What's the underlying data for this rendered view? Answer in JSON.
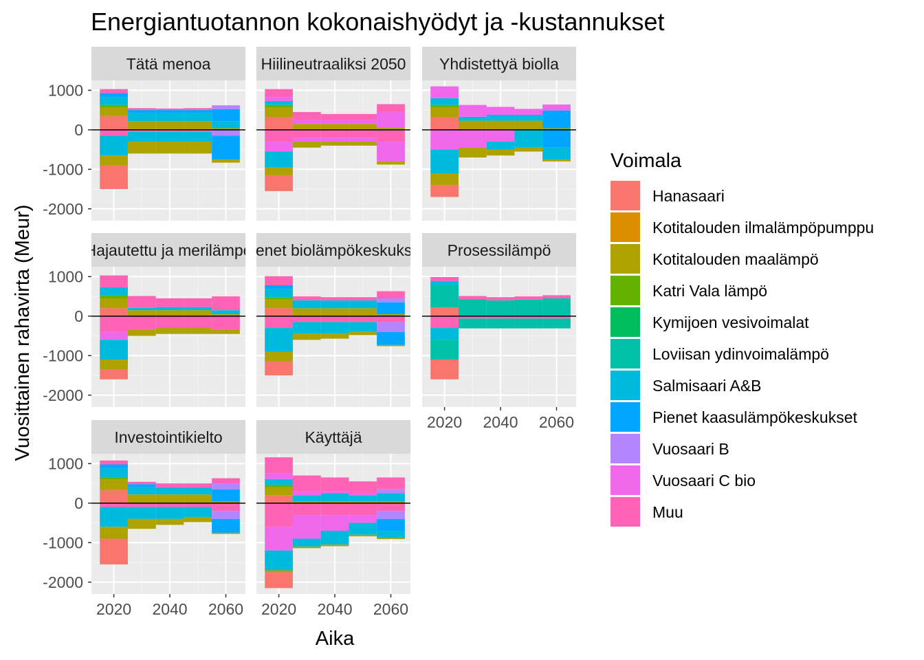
{
  "chart_data": {
    "type": "area",
    "title": "Energiantuotannon kokonaishyödyt ja -kustannukset",
    "xlabel": "Aika",
    "ylabel": "Vuosittainen rahavirta (Meur)",
    "x_ticks": [
      2020,
      2040,
      2060
    ],
    "y_ticks": [
      1000,
      0,
      -1000,
      -2000
    ],
    "xlim": [
      2012,
      2067
    ],
    "ylim": [
      -2300,
      1250
    ],
    "periods": [
      2020,
      2030,
      2040,
      2050,
      2060
    ],
    "legend": {
      "title": "Voimala",
      "placement": "right",
      "entries": [
        {
          "name": "Hanasaari",
          "color": "#F8766D"
        },
        {
          "name": "Kotitalouden ilmalämpöpumppu",
          "color": "#DB8E00"
        },
        {
          "name": "Kotitalouden maalämpö",
          "color": "#AEA200"
        },
        {
          "name": "Katri Vala lämpö",
          "color": "#64B200"
        },
        {
          "name": "Kymijoen vesivoimalat",
          "color": "#00BD5C"
        },
        {
          "name": "Loviisan ydinvoimalämpö",
          "color": "#00C1A7"
        },
        {
          "name": "Salmisaari A&B",
          "color": "#00BADE"
        },
        {
          "name": "Pienet kaasulämpökeskukset",
          "color": "#00A6FF"
        },
        {
          "name": "Vuosaari B",
          "color": "#B385FF"
        },
        {
          "name": "Vuosaari C bio",
          "color": "#EF67EB"
        },
        {
          "name": "Muu",
          "color": "#FF63B6"
        }
      ]
    },
    "facets": [
      {
        "strip": "Tätä menoa",
        "positive": [
          {
            "Hanasaari": 350,
            "Kotitalouden maalämpö": 220,
            "Katri Vala lämpö": 60,
            "Salmisaari A&B": 200,
            "Pienet kaasulämpökeskukset": 100,
            "Muu": 100
          },
          {
            "Kotitalouden maalämpö": 220,
            "Salmisaari A&B": 200,
            "Pienet kaasulämpökeskukset": 80,
            "Muu": 50
          },
          {
            "Kotitalouden maalämpö": 220,
            "Salmisaari A&B": 200,
            "Pienet kaasulämpökeskukset": 80,
            "Muu": 40
          },
          {
            "Kotitalouden maalämpö": 220,
            "Salmisaari A&B": 200,
            "Pienet kaasulämpökeskukset": 80,
            "Muu": 50
          },
          {
            "Kotitalouden maalämpö": 40,
            "Salmisaari A&B": 180,
            "Pienet kaasulämpökeskukset": 300,
            "Vuosaari B": 100
          }
        ],
        "negative": [
          {
            "Muu": -150,
            "Salmisaari A&B": -500,
            "Kotitalouden maalämpö": -250,
            "Hanasaari": -600
          },
          {
            "Muu": -50,
            "Salmisaari A&B": -250,
            "Kotitalouden maalämpö": -300
          },
          {
            "Muu": -50,
            "Salmisaari A&B": -250,
            "Kotitalouden maalämpö": -300
          },
          {
            "Muu": -50,
            "Salmisaari A&B": -250,
            "Kotitalouden maalämpö": -300
          },
          {
            "Vuosaari B": -150,
            "Pienet kaasulämpökeskukset": -600,
            "Kotitalouden maalämpö": -80
          }
        ]
      },
      {
        "strip": "Hiilineutraaliksi 2050",
        "positive": [
          {
            "Hanasaari": 320,
            "Kotitalouden maalämpö": 250,
            "Katri Vala lämpö": 60,
            "Salmisaari A&B": 100,
            "Vuosaari C bio": 100,
            "Muu": 200
          },
          {
            "Kotitalouden maalämpö": 150,
            "Vuosaari C bio": 100,
            "Muu": 200
          },
          {
            "Kotitalouden maalämpö": 150,
            "Vuosaari C bio": 100,
            "Muu": 150
          },
          {
            "Kotitalouden maalämpö": 150,
            "Vuosaari C bio": 100,
            "Muu": 150
          },
          {
            "Kotitalouden maalämpö": 50,
            "Vuosaari C bio": 400,
            "Muu": 200
          }
        ],
        "negative": [
          {
            "Muu": -300,
            "Vuosaari C bio": -250,
            "Salmisaari A&B": -400,
            "Kotitalouden maalämpö": -200,
            "Hanasaari": -400
          },
          {
            "Muu": -200,
            "Vuosaari C bio": -100,
            "Kotitalouden maalämpö": -150
          },
          {
            "Muu": -200,
            "Vuosaari C bio": -100,
            "Kotitalouden maalämpö": -100
          },
          {
            "Muu": -200,
            "Vuosaari C bio": -100,
            "Kotitalouden maalämpö": -100
          },
          {
            "Muu": -300,
            "Vuosaari C bio": -500,
            "Kotitalouden maalämpö": -80
          }
        ]
      },
      {
        "strip": "Yhdistettyä biolla",
        "positive": [
          {
            "Hanasaari": 320,
            "Kotitalouden maalämpö": 250,
            "Katri Vala lämpö": 60,
            "Salmisaari A&B": 170,
            "Vuosaari C bio": 300
          },
          {
            "Kotitalouden maalämpö": 230,
            "Salmisaari A&B": 100,
            "Vuosaari C bio": 300
          },
          {
            "Kotitalouden maalämpö": 230,
            "Salmisaari A&B": 150,
            "Vuosaari C bio": 200
          },
          {
            "Kotitalouden maalämpö": 230,
            "Salmisaari A&B": 150,
            "Vuosaari C bio": 150
          },
          {
            "Kotitalouden maalämpö": 40,
            "Pienet kaasulämpökeskukset": 450,
            "Vuosaari C bio": 150
          }
        ],
        "negative": [
          {
            "Vuosaari C bio": -500,
            "Salmisaari A&B": -600,
            "Kotitalouden maalämpö": -300,
            "Hanasaari": -300
          },
          {
            "Vuosaari C bio": -450,
            "Kotitalouden maalämpö": -250
          },
          {
            "Vuosaari C bio": -300,
            "Salmisaari A&B": -200,
            "Kotitalouden maalämpö": -150
          },
          {
            "Salmisaari A&B": -450,
            "Kotitalouden maalämpö": -100
          },
          {
            "Pienet kaasulämpökeskukset": -450,
            "Salmisaari A&B": -300,
            "Kotitalouden maalämpö": -50
          }
        ]
      },
      {
        "strip": "Hajautettu ja merilämpö",
        "positive": [
          {
            "Hanasaari": 200,
            "Kotitalouden maalämpö": 250,
            "Katri Vala lämpö": 80,
            "Salmisaari A&B": 200,
            "Muu": 300
          },
          {
            "Kotitalouden maalämpö": 150,
            "Salmisaari A&B": 60,
            "Muu": 300
          },
          {
            "Kotitalouden maalämpö": 150,
            "Salmisaari A&B": 80,
            "Muu": 220
          },
          {
            "Kotitalouden maalämpö": 150,
            "Salmisaari A&B": 80,
            "Muu": 220
          },
          {
            "Kotitalouden maalämpö": 50,
            "Salmisaari A&B": 100,
            "Muu": 350
          }
        ],
        "negative": [
          {
            "Muu": -400,
            "Vuosaari C bio": -200,
            "Salmisaari A&B": -500,
            "Kotitalouden maalämpö": -250,
            "Hanasaari": -250
          },
          {
            "Muu": -350,
            "Kotitalouden maalämpö": -150
          },
          {
            "Muu": -300,
            "Kotitalouden maalämpö": -150
          },
          {
            "Muu": -300,
            "Kotitalouden maalämpö": -150
          },
          {
            "Muu": -350,
            "Kotitalouden maalämpö": -100
          }
        ]
      },
      {
        "strip": "Pienet biolämpökeskukset",
        "positive": [
          {
            "Hanasaari": 200,
            "Kotitalouden maalämpö": 220,
            "Katri Vala lämpö": 60,
            "Salmisaari A&B": 200,
            "Pienet kaasulämpökeskukset": 100,
            "Muu": 230
          },
          {
            "Kotitalouden maalämpö": 200,
            "Salmisaari A&B": 200,
            "Muu": 100
          },
          {
            "Kotitalouden maalämpö": 200,
            "Salmisaari A&B": 200,
            "Muu": 80
          },
          {
            "Kotitalouden maalämpö": 200,
            "Salmisaari A&B": 200,
            "Muu": 80
          },
          {
            "Kotitalouden maalämpö": 50,
            "Pienet kaasulämpökeskukset": 300,
            "Vuosaari B": 100,
            "Muu": 180
          }
        ],
        "negative": [
          {
            "Muu": -300,
            "Salmisaari A&B": -600,
            "Kotitalouden maalämpö": -250,
            "Hanasaari": -350
          },
          {
            "Muu": -150,
            "Salmisaari A&B": -300,
            "Kotitalouden maalämpö": -150
          },
          {
            "Muu": -150,
            "Salmisaari A&B": -300,
            "Kotitalouden maalämpö": -120
          },
          {
            "Muu": -150,
            "Salmisaari A&B": -250,
            "Kotitalouden maalämpö": -80
          },
          {
            "Muu": -150,
            "Vuosaari B": -250,
            "Pienet kaasulämpökeskukset": -330,
            "Kotitalouden maalämpö": -30
          }
        ]
      },
      {
        "strip": "Prosessilämpö",
        "positive": [
          {
            "Hanasaari": 220,
            "Loviisan ydinvoimalämpö": 570,
            "Salmisaari A&B": 100,
            "Muu": 100
          },
          {
            "Loviisan ydinvoimalämpö": 430,
            "Muu": 80
          },
          {
            "Loviisan ydinvoimalämpö": 400,
            "Muu": 80
          },
          {
            "Loviisan ydinvoimalämpö": 420,
            "Muu": 80
          },
          {
            "Loviisan ydinvoimalämpö": 450,
            "Muu": 80
          }
        ],
        "negative": [
          {
            "Muu": -300,
            "Salmisaari A&B": -300,
            "Loviisan ydinvoimalämpö": -500,
            "Hanasaari": -500
          },
          {
            "Muu": -60,
            "Loviisan ydinvoimalämpö": -250
          },
          {
            "Muu": -60,
            "Loviisan ydinvoimalämpö": -250
          },
          {
            "Muu": -60,
            "Loviisan ydinvoimalämpö": -250
          },
          {
            "Muu": -60,
            "Loviisan ydinvoimalämpö": -250
          }
        ]
      },
      {
        "strip": "Investointikielto",
        "positive": [
          {
            "Hanasaari": 330,
            "Kotitalouden maalämpö": 270,
            "Katri Vala lämpö": 60,
            "Salmisaari A&B": 220,
            "Pienet kaasulämpökeskukset": 100,
            "Muu": 100
          },
          {
            "Kotitalouden maalämpö": 220,
            "Salmisaari A&B": 180,
            "Pienet kaasulämpökeskukset": 80,
            "Muu": 60
          },
          {
            "Kotitalouden maalämpö": 220,
            "Salmisaari A&B": 180,
            "Muu": 100
          },
          {
            "Kotitalouden maalämpö": 220,
            "Salmisaari A&B": 180,
            "Muu": 100
          },
          {
            "Kotitalouden maalämpö": 50,
            "Pienet kaasulämpökeskukset": 300,
            "Vuosaari B": 150,
            "Muu": 130
          }
        ],
        "negative": [
          {
            "Muu": -100,
            "Salmisaari A&B": -500,
            "Kotitalouden maalämpö": -300,
            "Hanasaari": -650
          },
          {
            "Muu": -100,
            "Salmisaari A&B": -300,
            "Kotitalouden maalämpö": -250
          },
          {
            "Muu": -100,
            "Salmisaari A&B": -300,
            "Kotitalouden maalämpö": -150
          },
          {
            "Muu": -100,
            "Salmisaari A&B": -250,
            "Kotitalouden maalämpö": -130
          },
          {
            "Muu": -200,
            "Vuosaari B": -200,
            "Pienet kaasulämpökeskukset": -350,
            "Kotitalouden maalämpö": -30
          }
        ]
      },
      {
        "strip": "Käyttäjä",
        "positive": [
          {
            "Hanasaari": 200,
            "Kotitalouden maalämpö": 200,
            "Katri Vala lämpö": 60,
            "Salmisaari A&B": 150,
            "Vuosaari C bio": 150,
            "Muu": 400
          },
          {
            "Kotitalouden maalämpö": 50,
            "Salmisaari A&B": 150,
            "Vuosaari C bio": 100,
            "Muu": 400
          },
          {
            "Kotitalouden maalämpö": 50,
            "Salmisaari A&B": 200,
            "Vuosaari C bio": 50,
            "Muu": 350
          },
          {
            "Kotitalouden maalämpö": 50,
            "Salmisaari A&B": 150,
            "Vuosaari C bio": 50,
            "Muu": 300
          },
          {
            "Kotitalouden maalämpö": 50,
            "Salmisaari A&B": 200,
            "Vuosaari B": 100,
            "Muu": 300
          }
        ],
        "negative": [
          {
            "Muu": -600,
            "Vuosaari C bio": -600,
            "Salmisaari A&B": -500,
            "Kotitalouden maalämpö": -50,
            "Hanasaari": -400
          },
          {
            "Muu": -300,
            "Vuosaari C bio": -600,
            "Salmisaari A&B": -200,
            "Kotitalouden maalämpö": -40
          },
          {
            "Muu": -300,
            "Vuosaari C bio": -400,
            "Salmisaari A&B": -350,
            "Kotitalouden maalämpö": -40
          },
          {
            "Muu": -300,
            "Vuosaari C bio": -200,
            "Salmisaari A&B": -300,
            "Kotitalouden maalämpö": -40
          },
          {
            "Muu": -200,
            "Vuosaari B": -200,
            "Pienet kaasulämpökeskukset": -300,
            "Salmisaari A&B": -180,
            "Kotitalouden maalämpö": -30
          }
        ]
      }
    ]
  }
}
